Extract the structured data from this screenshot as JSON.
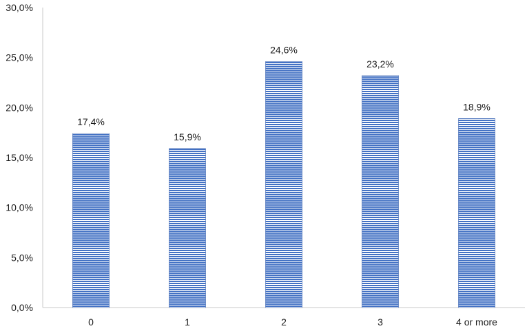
{
  "chart_data": {
    "type": "bar",
    "categories": [
      "0",
      "1",
      "2",
      "3",
      "4 or more"
    ],
    "values": [
      17.4,
      15.9,
      24.6,
      23.2,
      18.9
    ],
    "data_labels": [
      "17,4%",
      "15,9%",
      "24,6%",
      "23,2%",
      "18,9%"
    ],
    "y_ticks": [
      0,
      5,
      10,
      15,
      20,
      25,
      30
    ],
    "y_tick_labels": [
      "0,0%",
      "5,0%",
      "10,0%",
      "15,0%",
      "20,0%",
      "25,0%",
      "30,0%"
    ],
    "ylim": [
      0,
      30
    ],
    "grid": false,
    "legend": "none",
    "bar_fill": "horizontal-stripes",
    "colors": {
      "stripe": "#4472c4",
      "stripe_light": "#ffffff",
      "bar_outline": "#3a63b0",
      "axis": "#c8c8c8"
    }
  }
}
